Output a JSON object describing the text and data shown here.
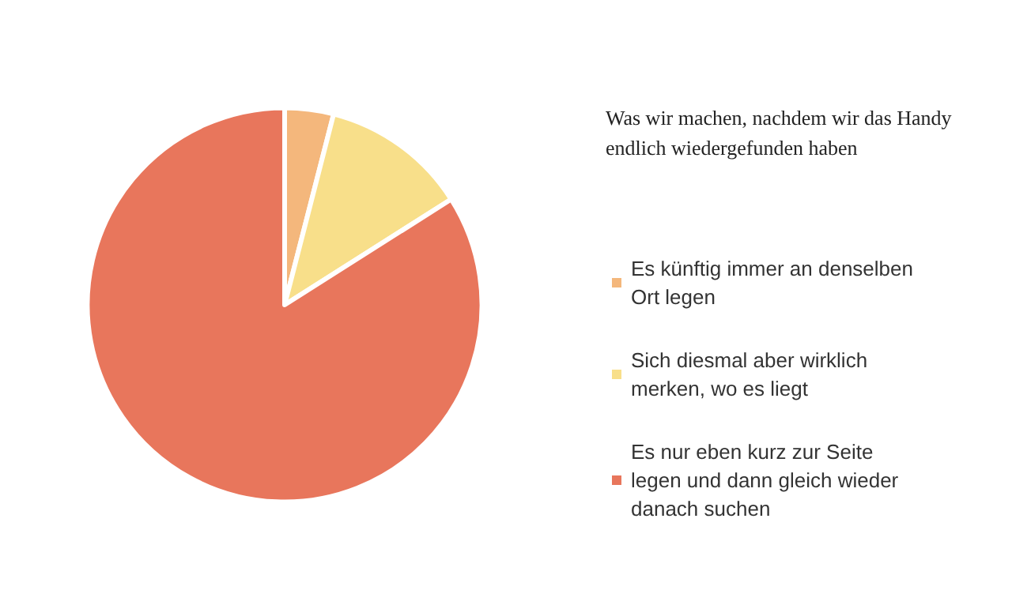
{
  "chart_data": {
    "type": "pie",
    "title": "Was wir machen, nachdem wir das Handy endlich wiedergefunden haben",
    "categories": [
      "Es künftig immer an denselben Ort legen",
      "Sich diesmal aber wirklich merken, wo es liegt",
      "Es nur eben kurz zur Seite legen und dann gleich wieder danach suchen"
    ],
    "values": [
      4,
      12,
      84
    ],
    "colors": [
      "#f4b77c",
      "#f8df8a",
      "#e8765c"
    ],
    "legend": "right"
  }
}
